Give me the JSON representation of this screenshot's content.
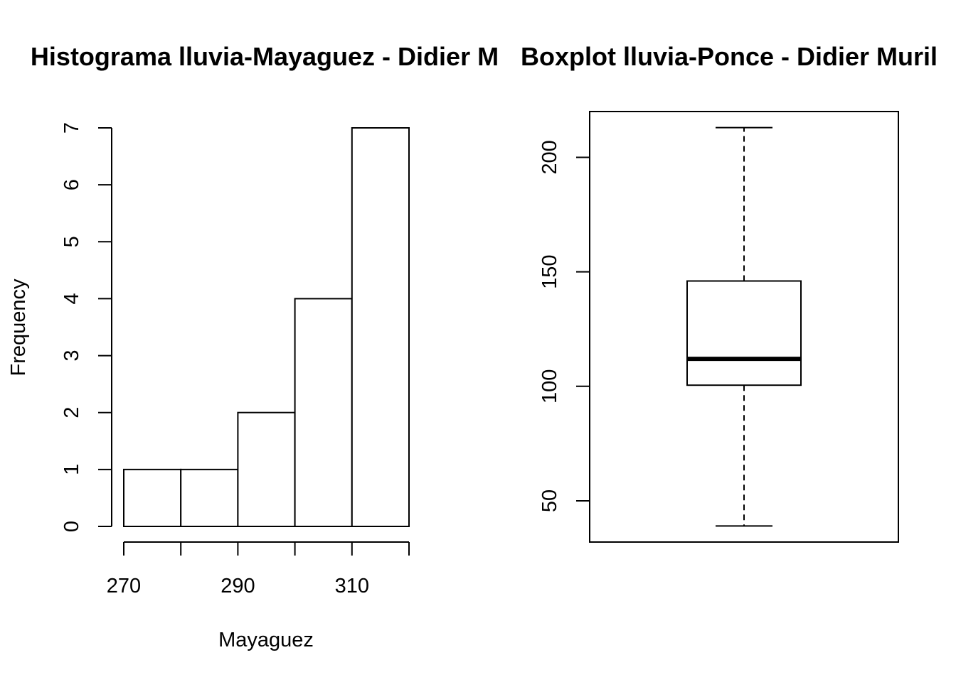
{
  "chart_data": [
    {
      "type": "bar",
      "subtype": "histogram",
      "title": "Histograma lluvia-Mayaguez - Didier M",
      "xlabel": "Mayaguez",
      "ylabel": "Frequency",
      "bins": [
        [
          270,
          280
        ],
        [
          280,
          290
        ],
        [
          290,
          300
        ],
        [
          300,
          310
        ],
        [
          310,
          320
        ]
      ],
      "values": [
        1,
        1,
        2,
        4,
        7
      ],
      "xlim": [
        270,
        320
      ],
      "ylim": [
        0,
        7
      ],
      "xticks": [
        270,
        280,
        290,
        300,
        310,
        320
      ],
      "xtick_labels": [
        "270",
        "",
        "290",
        "",
        "310",
        ""
      ],
      "yticks": [
        0,
        1,
        2,
        3,
        4,
        5,
        6,
        7
      ],
      "ytick_labels": [
        "0",
        "1",
        "2",
        "3",
        "4",
        "5",
        "6",
        "7"
      ],
      "grid": false,
      "colors": {
        "fill": "#ffffff",
        "stroke": "#000000"
      }
    },
    {
      "type": "boxplot",
      "title": "Boxplot lluvia-Ponce - Didier Muril",
      "xlabel": "",
      "ylabel": "",
      "series": [
        {
          "whisker_low": 39,
          "q1": 100.5,
          "median": 112,
          "q3": 146,
          "whisker_high": 213
        }
      ],
      "ylim": [
        32,
        220
      ],
      "yticks": [
        50,
        100,
        150,
        200
      ],
      "ytick_labels": [
        "50",
        "100",
        "150",
        "200"
      ],
      "grid": false,
      "colors": {
        "fill": "#ffffff",
        "stroke": "#000000"
      }
    }
  ]
}
